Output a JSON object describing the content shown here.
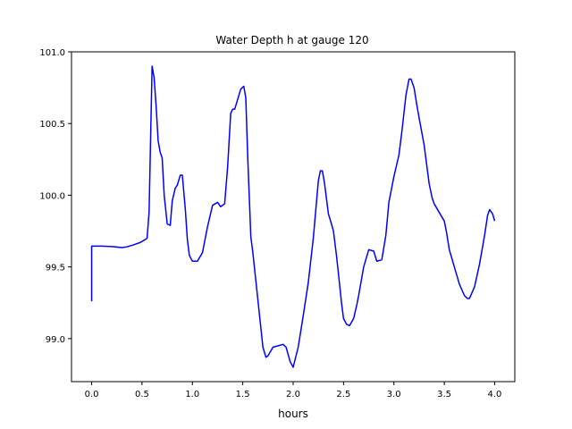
{
  "chart_data": {
    "type": "line",
    "title": "Water Depth h at gauge 120",
    "xlabel": "hours",
    "ylabel": "",
    "xlim": [
      -0.2,
      4.2
    ],
    "ylim": [
      98.7,
      101.0
    ],
    "x_ticks": [
      0.0,
      0.5,
      1.0,
      1.5,
      2.0,
      2.5,
      3.0,
      3.5,
      4.0
    ],
    "x_tick_labels": [
      "0.0",
      "0.5",
      "1.0",
      "1.5",
      "2.0",
      "2.5",
      "3.0",
      "3.5",
      "4.0"
    ],
    "y_ticks": [
      99.0,
      99.5,
      100.0,
      100.5,
      101.0
    ],
    "y_tick_labels": [
      "99.0",
      "99.5",
      "100.0",
      "100.5",
      "101.0"
    ],
    "grid": false,
    "series": [
      {
        "color": "#0000ff",
        "x": [
          0.0,
          0.0,
          0.1,
          0.2,
          0.3,
          0.35,
          0.42,
          0.48,
          0.53,
          0.55,
          0.57,
          0.6,
          0.62,
          0.64,
          0.66,
          0.68,
          0.7,
          0.72,
          0.75,
          0.78,
          0.8,
          0.83,
          0.85,
          0.88,
          0.9,
          0.93,
          0.95,
          0.97,
          1.0,
          1.05,
          1.1,
          1.15,
          1.2,
          1.25,
          1.28,
          1.32,
          1.35,
          1.38,
          1.4,
          1.42,
          1.45,
          1.48,
          1.51,
          1.53,
          1.55,
          1.58,
          1.6,
          1.65,
          1.7,
          1.73,
          1.75,
          1.8,
          1.85,
          1.9,
          1.93,
          1.97,
          2.0,
          2.05,
          2.1,
          2.15,
          2.2,
          2.25,
          2.27,
          2.29,
          2.31,
          2.33,
          2.35,
          2.38,
          2.4,
          2.43,
          2.45,
          2.48,
          2.5,
          2.53,
          2.56,
          2.6,
          2.63,
          2.65,
          2.7,
          2.75,
          2.8,
          2.83,
          2.88,
          2.92,
          2.95,
          3.0,
          3.05,
          3.08,
          3.12,
          3.15,
          3.17,
          3.2,
          3.23,
          3.25,
          3.3,
          3.35,
          3.38,
          3.4,
          3.45,
          3.5,
          3.52,
          3.55,
          3.6,
          3.65,
          3.7,
          3.73,
          3.75,
          3.8,
          3.85,
          3.9,
          3.93,
          3.95,
          3.98,
          4.0
        ],
        "y": [
          99.26,
          99.645,
          99.645,
          99.642,
          99.635,
          99.64,
          99.655,
          99.67,
          99.69,
          99.7,
          99.88,
          100.9,
          100.82,
          100.62,
          100.38,
          100.3,
          100.26,
          100.0,
          99.8,
          99.79,
          99.96,
          100.05,
          100.07,
          100.14,
          100.14,
          99.9,
          99.69,
          99.58,
          99.54,
          99.54,
          99.6,
          99.78,
          99.93,
          99.95,
          99.92,
          99.94,
          100.2,
          100.57,
          100.6,
          100.6,
          100.67,
          100.74,
          100.76,
          100.68,
          100.25,
          99.71,
          99.6,
          99.27,
          98.94,
          98.87,
          98.88,
          98.94,
          98.95,
          98.96,
          98.94,
          98.84,
          98.8,
          98.94,
          99.16,
          99.39,
          99.7,
          100.1,
          100.17,
          100.17,
          100.09,
          99.98,
          99.87,
          99.8,
          99.75,
          99.58,
          99.45,
          99.25,
          99.14,
          99.1,
          99.09,
          99.14,
          99.23,
          99.3,
          99.5,
          99.62,
          99.61,
          99.54,
          99.55,
          99.72,
          99.95,
          100.13,
          100.28,
          100.45,
          100.7,
          100.81,
          100.81,
          100.75,
          100.62,
          100.54,
          100.35,
          100.08,
          99.98,
          99.94,
          99.88,
          99.82,
          99.75,
          99.62,
          99.5,
          99.38,
          99.3,
          99.28,
          99.28,
          99.36,
          99.52,
          99.72,
          99.86,
          99.9,
          99.87,
          99.82
        ]
      }
    ]
  }
}
